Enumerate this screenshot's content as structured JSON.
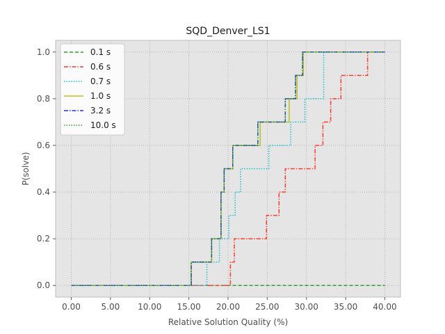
{
  "chart_data": {
    "type": "line",
    "title": "SQD_Denver_LS1",
    "xlabel": "Relative Solution Quality (%)",
    "ylabel": "P(solve)",
    "xlim": [
      -2,
      42
    ],
    "ylim": [
      -0.05,
      1.05
    ],
    "grid": true,
    "legend_position": "upper-left",
    "x_ticks": [
      0,
      5,
      10,
      15,
      20,
      25,
      30,
      35,
      40
    ],
    "x_tick_labels": [
      "0.00",
      "5.00",
      "10.00",
      "15.00",
      "20.00",
      "25.00",
      "30.00",
      "35.00",
      "40.00"
    ],
    "y_ticks": [
      0,
      0.2,
      0.4,
      0.6,
      0.8,
      1.0
    ],
    "y_tick_labels": [
      "0.0",
      "0.2",
      "0.4",
      "0.6",
      "0.8",
      "1.0"
    ],
    "series": [
      {
        "name": "0.1 s",
        "color": "#2ca02c",
        "dash": "dashed",
        "x": [
          0,
          40
        ],
        "y": [
          0,
          0
        ]
      },
      {
        "name": "0.6 s",
        "color": "#ff3b30",
        "dash": "dashdot",
        "x": [
          0,
          20.3,
          20.3,
          20.8,
          20.8,
          24.9,
          24.9,
          26.5,
          26.5,
          27.3,
          27.3,
          31.1,
          31.1,
          32.1,
          32.1,
          33.1,
          33.1,
          34.4,
          34.4,
          37.8,
          37.8,
          40
        ],
        "y": [
          0,
          0,
          0.1,
          0.1,
          0.2,
          0.2,
          0.3,
          0.3,
          0.4,
          0.4,
          0.5,
          0.5,
          0.6,
          0.6,
          0.7,
          0.7,
          0.8,
          0.8,
          0.9,
          0.9,
          1.0,
          1.0
        ]
      },
      {
        "name": "0.7 s",
        "color": "#17becf",
        "dash": "dotted",
        "x": [
          0,
          17.3,
          17.3,
          18.9,
          18.9,
          20.1,
          20.1,
          20.9,
          20.9,
          21.6,
          21.6,
          25.2,
          25.2,
          28.0,
          28.0,
          29.8,
          29.8,
          32.2,
          32.2,
          40
        ],
        "y": [
          0,
          0,
          0.1,
          0.1,
          0.2,
          0.2,
          0.3,
          0.3,
          0.4,
          0.4,
          0.5,
          0.5,
          0.6,
          0.6,
          0.7,
          0.7,
          0.8,
          0.8,
          1.0,
          1.0
        ]
      },
      {
        "name": "1.0 s",
        "color": "#bcbd22",
        "dash": "solid",
        "x": [
          0,
          15.3,
          15.3,
          17.9,
          17.9,
          19.1,
          19.1,
          19.5,
          19.5,
          20.6,
          20.6,
          24.1,
          24.1,
          27.8,
          27.8,
          28.8,
          28.8,
          29.6,
          29.6,
          40
        ],
        "y": [
          0,
          0,
          0.1,
          0.1,
          0.2,
          0.2,
          0.4,
          0.4,
          0.5,
          0.5,
          0.6,
          0.6,
          0.7,
          0.7,
          0.8,
          0.8,
          0.9,
          0.9,
          1.0,
          1.0
        ]
      },
      {
        "name": "3.2 s",
        "color": "#1f2ee0",
        "dash": "dashdot",
        "x": [
          0,
          15.3,
          15.3,
          17.9,
          17.9,
          19.1,
          19.1,
          19.5,
          19.5,
          20.6,
          20.6,
          23.8,
          23.8,
          27.3,
          27.3,
          28.6,
          28.6,
          29.5,
          29.5,
          40
        ],
        "y": [
          0,
          0,
          0.1,
          0.1,
          0.2,
          0.2,
          0.4,
          0.4,
          0.5,
          0.5,
          0.6,
          0.6,
          0.7,
          0.7,
          0.8,
          0.8,
          0.9,
          0.9,
          1.0,
          1.0
        ]
      },
      {
        "name": "10.0 s",
        "color": "#2ca02c",
        "dash": "dotted",
        "x": [
          0,
          15.3,
          15.3,
          17.9,
          17.9,
          19.1,
          19.1,
          19.5,
          19.5,
          20.6,
          20.6,
          23.8,
          23.8,
          27.3,
          27.3,
          28.6,
          28.6,
          29.5,
          29.5,
          40
        ],
        "y": [
          0,
          0,
          0.1,
          0.1,
          0.2,
          0.2,
          0.4,
          0.4,
          0.5,
          0.5,
          0.6,
          0.6,
          0.7,
          0.7,
          0.8,
          0.8,
          0.9,
          0.9,
          1.0,
          1.0
        ]
      }
    ]
  }
}
